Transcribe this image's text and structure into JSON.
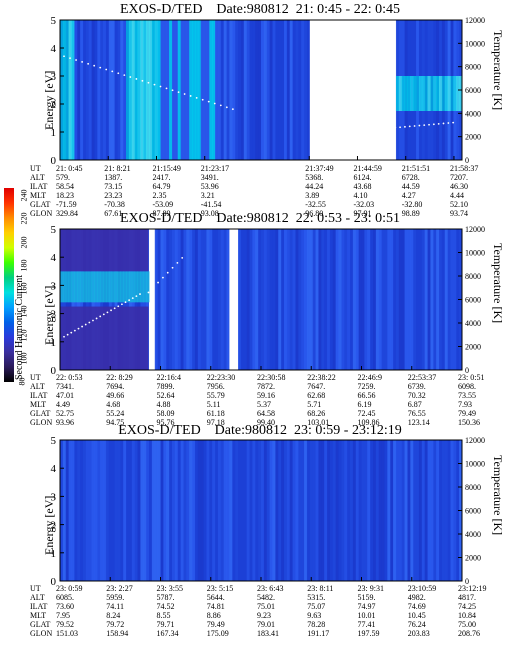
{
  "colorbar": {
    "label": "Second Harmonic Current",
    "ticks": [
      "240",
      "220",
      "200",
      "180",
      "160",
      "140",
      "120",
      "100",
      "80"
    ],
    "colors": [
      "#e00000",
      "#ff3300",
      "#ff8c00",
      "#ffd000",
      "#d0ff00",
      "#3cff00",
      "#00d080",
      "#00e0e0",
      "#00a0ff",
      "#0060e8",
      "#2a3adc",
      "#3b2f9e",
      "#2a1a5a",
      "#000000"
    ]
  },
  "chart_data": [
    {
      "type": "heatmap",
      "title": "EXOS-D/TED    Date:980812  21: 0:45 - 22: 0:45",
      "ylabel": "Energy [eV]",
      "y2label": "Temperature [K]",
      "ylim": [
        0,
        5
      ],
      "y2lim": [
        0,
        12000
      ],
      "yticks": [
        "0",
        "1",
        "2",
        "3",
        "4",
        "5"
      ],
      "y2ticks": [
        "0",
        "2000",
        "4000",
        "6000",
        "8000",
        "10000",
        "12000"
      ],
      "gaps": [
        [
          0.62,
          0.83
        ]
      ],
      "ephemeris": {
        "labels": [
          "UT",
          "ALT",
          "ILAT",
          "MLT",
          "GLAT",
          "GLON"
        ],
        "columns": [
          [
            "21: 0:45",
            "579.",
            "58.54",
            "18.23",
            "-71.59",
            "329.84"
          ],
          [
            "21: 8:21",
            "1387.",
            "73.15",
            "23.23",
            "-70.38",
            "67.61"
          ],
          [
            "21:15:49",
            "2417.",
            "64.79",
            "2.35",
            "-53.09",
            "87.89"
          ],
          [
            "21:23:17",
            "3491.",
            "53.96",
            "3.21",
            "-41.54",
            "93.08"
          ],
          [
            "21:37:49",
            "5368.",
            "44.24",
            "3.89",
            "-32.55",
            "96.80"
          ],
          [
            "21:44:59",
            "6124.",
            "43.68",
            "4.10",
            "-32.03",
            "97.91"
          ],
          [
            "21:51:51",
            "6728.",
            "44.59",
            "4.27",
            "-32.80",
            "98.89"
          ],
          [
            "21:58:37",
            "7207.",
            "46.30",
            "4.44",
            "52.10",
            "93.74"
          ]
        ]
      }
    },
    {
      "type": "heatmap",
      "title": "EXOS-D/TED    Date:980812  22: 0:53 - 23: 0:51",
      "ylabel": "Energy [eV]",
      "y2label": "Temperature [K]",
      "ylim": [
        0,
        5
      ],
      "y2lim": [
        0,
        12000
      ],
      "yticks": [
        "0",
        "1",
        "2",
        "3",
        "4",
        "5"
      ],
      "y2ticks": [
        "0",
        "2000",
        "4000",
        "6000",
        "8000",
        "10000",
        "12000"
      ],
      "gaps": [
        [
          0.22,
          0.23
        ],
        [
          0.42,
          0.44
        ]
      ],
      "ephemeris": {
        "labels": [
          "UT",
          "ALT",
          "ILAT",
          "MLT",
          "GLAT",
          "GLON"
        ],
        "columns": [
          [
            "22: 0:53",
            "7341.",
            "47.01",
            "4.49",
            "52.75",
            "93.96"
          ],
          [
            "22: 8:29",
            "7694.",
            "49.66",
            "4.68",
            "55.24",
            "94.75"
          ],
          [
            "22:16:4",
            "7899.",
            "52.64",
            "4.88",
            "58.09",
            "95.76"
          ],
          [
            "22:23:30",
            "7956.",
            "55.79",
            "5.11",
            "61.18",
            "97.18"
          ],
          [
            "22:30:58",
            "7872.",
            "59.16",
            "5.37",
            "64.58",
            "99.40"
          ],
          [
            "22:38:22",
            "7647.",
            "62.68",
            "5.71",
            "68.26",
            "103.01"
          ],
          [
            "22:46:9",
            "7259.",
            "66.56",
            "6.19",
            "72.45",
            "109.86"
          ],
          [
            "22:53:37",
            "6739.",
            "70.32",
            "6.87",
            "76.55",
            "123.14"
          ],
          [
            "23: 0:51",
            "6098.",
            "73.55",
            "7.93",
            "79.49",
            "150.36"
          ]
        ]
      }
    },
    {
      "type": "heatmap",
      "title": "EXOS-D/TED    Date:980812  23: 0:59 - 23:12:19",
      "ylabel": "Energy [eV]",
      "y2label": "Temperature [K]",
      "ylim": [
        0,
        5
      ],
      "y2lim": [
        0,
        12000
      ],
      "yticks": [
        "0",
        "1",
        "2",
        "3",
        "4",
        "5"
      ],
      "y2ticks": [
        "0",
        "2000",
        "4000",
        "6000",
        "8000",
        "10000",
        "12000"
      ],
      "gaps": [],
      "ephemeris": {
        "labels": [
          "UT",
          "ALT",
          "ILAT",
          "MLT",
          "GLAT",
          "GLON"
        ],
        "columns": [
          [
            "23: 0:59",
            "6085.",
            "73.60",
            "7.95",
            "79.52",
            "151.03"
          ],
          [
            "23: 2:27",
            "5959.",
            "74.11",
            "8.24",
            "79.72",
            "158.94"
          ],
          [
            "23: 3:55",
            "5787.",
            "74.52",
            "8.55",
            "79.71",
            "167.34"
          ],
          [
            "23: 5:15",
            "5644.",
            "74.81",
            "8.86",
            "79.49",
            "175.09"
          ],
          [
            "23: 6:43",
            "5482.",
            "75.01",
            "9.23",
            "79.01",
            "183.41"
          ],
          [
            "23: 8:11",
            "5315.",
            "75.07",
            "9.63",
            "78.28",
            "191.17"
          ],
          [
            "23: 9:31",
            "5159.",
            "74.97",
            "10.01",
            "77.41",
            "197.59"
          ],
          [
            "23:10:59",
            "4982.",
            "74.69",
            "10.45",
            "76.24",
            "203.83"
          ],
          [
            "23:12:19",
            "4817.",
            "74.25",
            "10.84",
            "75.00",
            "208.76"
          ]
        ]
      }
    }
  ]
}
